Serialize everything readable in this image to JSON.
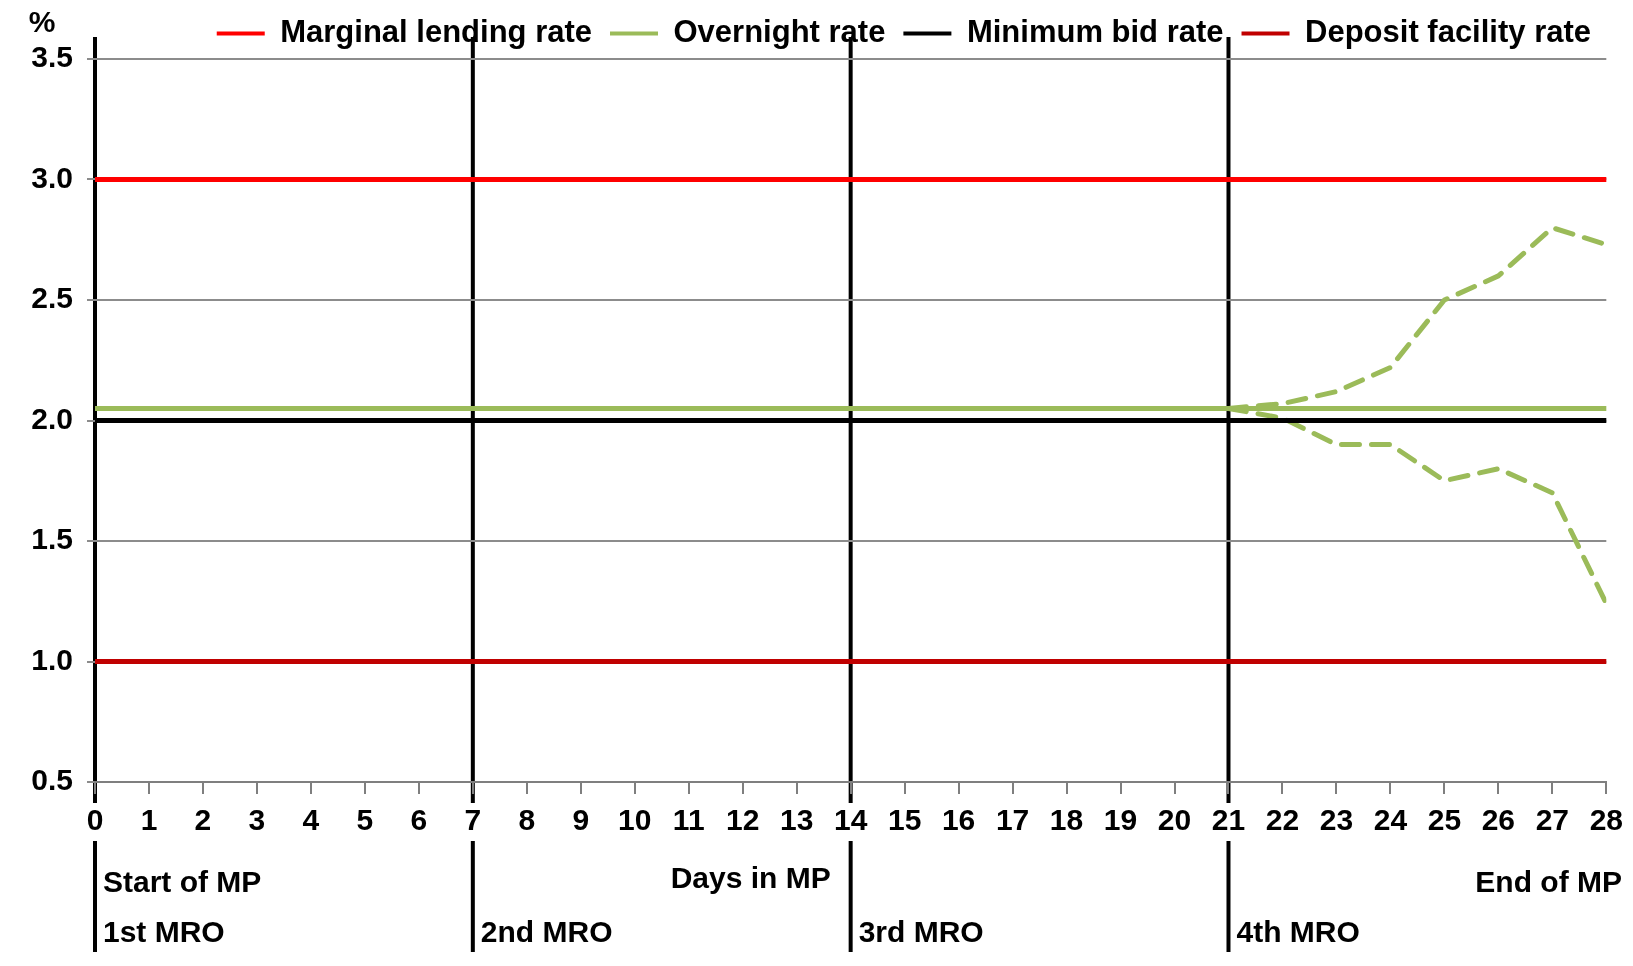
{
  "chart_data": {
    "type": "line",
    "xlabel": "Days in MP",
    "ylabel": "%",
    "xlim": [
      0,
      28
    ],
    "xticks": [
      0,
      1,
      2,
      3,
      4,
      5,
      6,
      7,
      8,
      9,
      10,
      11,
      12,
      13,
      14,
      15,
      16,
      17,
      18,
      19,
      20,
      21,
      22,
      23,
      24,
      25,
      26,
      27,
      28
    ],
    "ylim": [
      0.5,
      3.5
    ],
    "yticks": [
      {
        "value": 0.5,
        "label": "0.5"
      },
      {
        "value": 1,
        "label": "1.0"
      },
      {
        "value": 1.5,
        "label": "1.5"
      },
      {
        "value": 2,
        "label": "2.0"
      },
      {
        "value": 2.5,
        "label": "2.5"
      },
      {
        "value": 3,
        "label": "3.0"
      },
      {
        "value": 3.5,
        "label": "3.5"
      }
    ],
    "grid": "y",
    "legend": "top",
    "marker": "none",
    "series": [
      {
        "name": "Marginal lending rate",
        "color": "#ff0000",
        "x": [
          0,
          28
        ],
        "values": [
          3,
          3
        ]
      },
      {
        "name": "Overnight rate",
        "color": "#9bbb59",
        "x": [
          0,
          28
        ],
        "values": [
          2.05,
          2.05
        ]
      },
      {
        "name": "Minimum bid rate",
        "color": "#000000",
        "x": [
          0,
          28
        ],
        "values": [
          2,
          2
        ]
      },
      {
        "name": "Deposit facility rate",
        "color": "#c00000",
        "x": [
          0,
          28
        ],
        "values": [
          1,
          1
        ]
      },
      {
        "color": "#9bbb59",
        "line_style": "dashed",
        "x": [
          21,
          22,
          23,
          24,
          25,
          26,
          27,
          28
        ],
        "values": [
          2.05,
          2.07,
          2.12,
          2.22,
          2.5,
          2.6,
          2.8,
          2.73
        ]
      },
      {
        "color": "#9bbb59",
        "line_style": "dashed",
        "x": [
          21,
          22,
          23,
          24,
          25,
          26,
          27,
          28
        ],
        "values": [
          2.05,
          2.01,
          1.9,
          1.9,
          1.75,
          1.8,
          1.7,
          1.24
        ]
      }
    ],
    "ref_lines": [
      {
        "axis": "x",
        "value": 0,
        "label": "1st MRO",
        "color": "#000000"
      },
      {
        "axis": "x",
        "value": 7,
        "label": "2nd MRO",
        "color": "#000000"
      },
      {
        "axis": "x",
        "value": 14,
        "label": "3rd MRO",
        "color": "#000000"
      },
      {
        "axis": "x",
        "value": 21,
        "label": "4th MRO",
        "color": "#000000"
      }
    ],
    "annotations": [
      "Start of MP",
      "End of MP"
    ]
  }
}
